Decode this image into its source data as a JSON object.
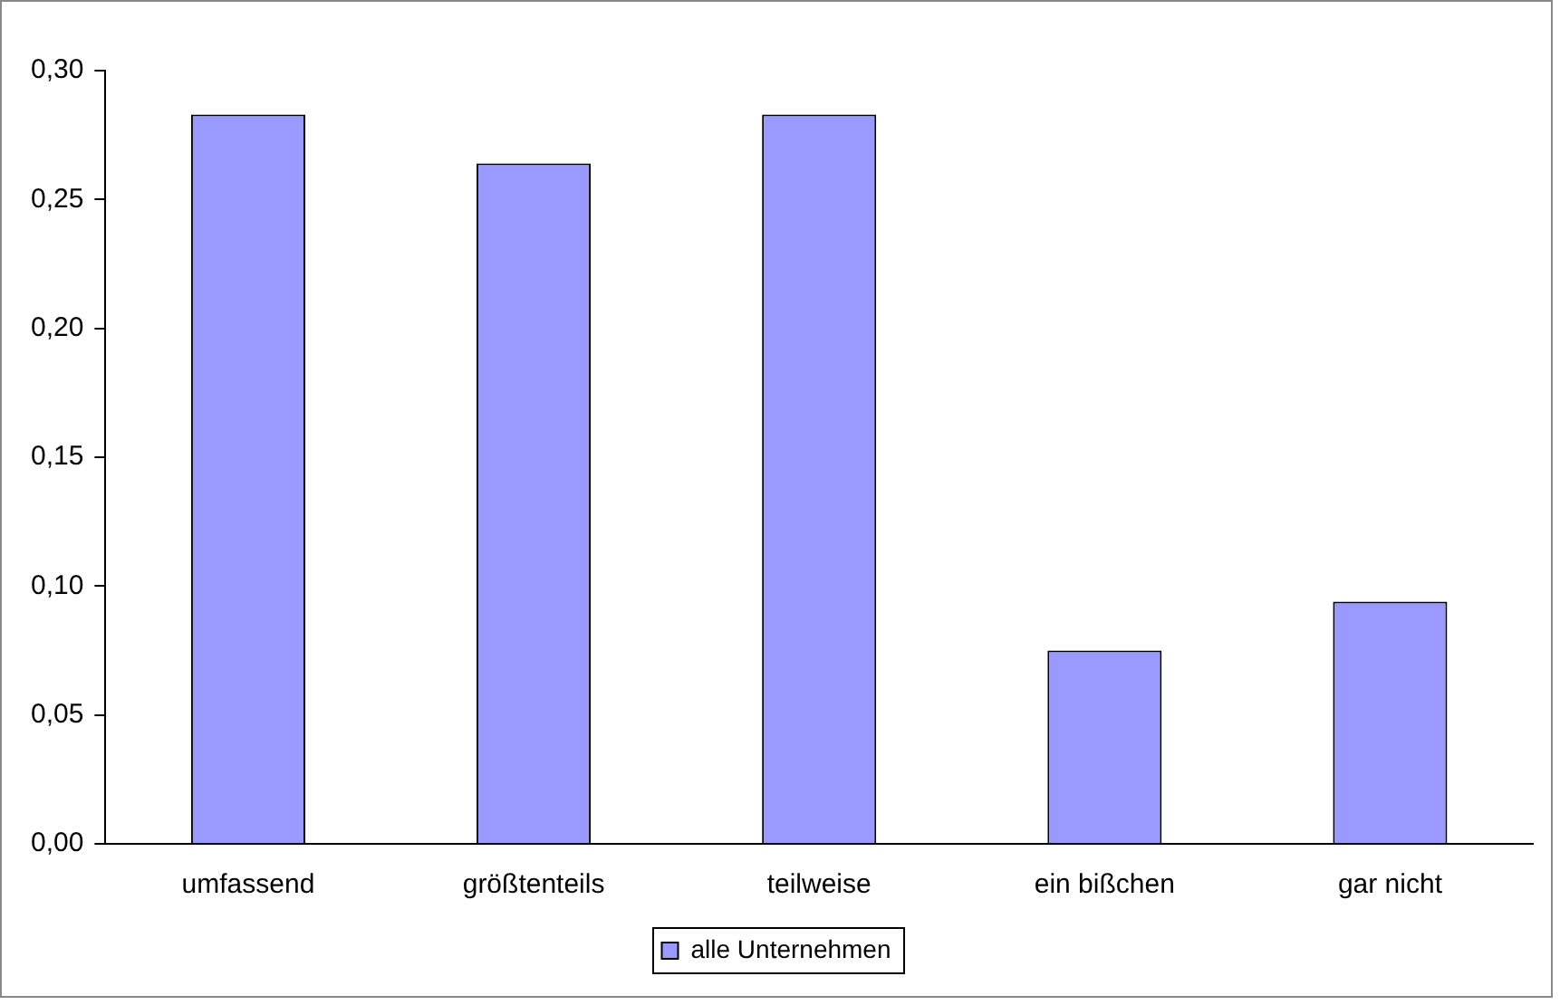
{
  "chart_data": {
    "type": "bar",
    "categories": [
      "umfassend",
      "größtenteils",
      "teilweise",
      "ein bißchen",
      "gar nicht"
    ],
    "series": [
      {
        "name": "alle Unternehmen",
        "color": "#9999ff",
        "values": [
          0.283,
          0.264,
          0.283,
          0.075,
          0.094
        ]
      }
    ],
    "ylim": [
      0,
      0.3
    ],
    "yticks": [
      {
        "value": 0,
        "label": "0,00"
      },
      {
        "value": 0.05,
        "label": "0,05"
      },
      {
        "value": 0.1,
        "label": "0,10"
      },
      {
        "value": 0.15,
        "label": "0,15"
      },
      {
        "value": 0.2,
        "label": "0,20"
      },
      {
        "value": 0.25,
        "label": "0,25"
      },
      {
        "value": 0.3,
        "label": "0,30"
      }
    ],
    "grid": false,
    "legend": "bottom"
  }
}
